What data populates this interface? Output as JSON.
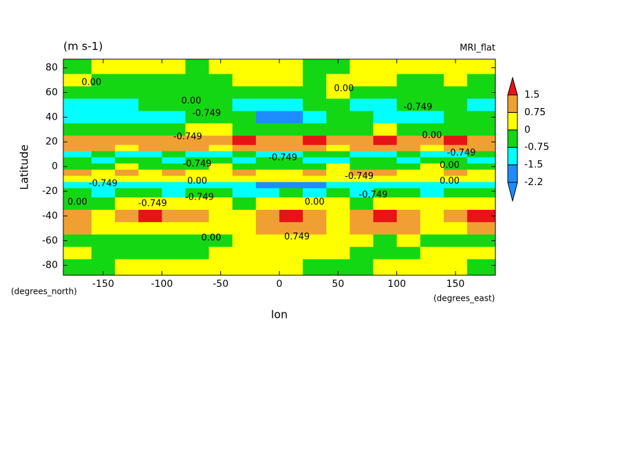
{
  "chart_data": {
    "type": "contourf",
    "title": "MRI_flat",
    "subtitle": "(m s-1)",
    "x_label": "lon",
    "y_label": "Latitude",
    "x_units": "(degrees_east)",
    "y_units": "(degrees_north)",
    "xlim": [
      -184,
      184
    ],
    "ylim": [
      -88,
      87
    ],
    "xticks": [
      -150,
      -100,
      -50,
      0,
      50,
      100,
      150
    ],
    "yticks": [
      -80,
      -60,
      -40,
      -20,
      0,
      20,
      40,
      60,
      80
    ],
    "levels": [
      -2.2,
      -1.5,
      -0.75,
      0,
      0.75,
      1.5
    ],
    "level_colors": [
      "#1e8cff",
      "#1e8cff",
      "#00ffff",
      "#14d714",
      "#ffff00",
      "#f0a032",
      "#e61414"
    ],
    "x": [
      -170,
      -150,
      -130,
      -110,
      -90,
      -70,
      -50,
      -30,
      -10,
      10,
      30,
      50,
      70,
      90,
      110,
      130,
      150,
      170
    ],
    "y": [
      80,
      70,
      60,
      50,
      40,
      30,
      20,
      15,
      10,
      5,
      0,
      -5,
      -10,
      -15,
      -20,
      -30,
      -40,
      -50,
      -60,
      -70,
      -80
    ],
    "z": [
      [
        -0.3,
        0.3,
        0.3,
        0.3,
        0.3,
        -0.3,
        0.3,
        0.3,
        0.3,
        0.3,
        -0.3,
        -0.3,
        0.3,
        0.3,
        0.3,
        0.3,
        0.3,
        0.3
      ],
      [
        0.3,
        -0.3,
        -0.3,
        -0.3,
        -0.3,
        -0.3,
        -0.3,
        0.3,
        0.3,
        0.3,
        -0.3,
        0.3,
        0.3,
        0.3,
        -0.3,
        -0.3,
        0.3,
        -0.3
      ],
      [
        -0.3,
        -0.3,
        -0.3,
        -0.3,
        -0.3,
        -0.3,
        -0.3,
        -0.3,
        -0.3,
        -0.3,
        -0.3,
        0.3,
        -0.3,
        -0.3,
        -0.3,
        -0.3,
        -0.3,
        -0.3
      ],
      [
        -0.9,
        -0.9,
        -0.9,
        -0.3,
        -0.3,
        -0.3,
        -0.3,
        -0.9,
        -1.2,
        -1.2,
        -0.3,
        -0.3,
        -0.9,
        -0.9,
        -0.3,
        -0.3,
        -0.3,
        -0.9
      ],
      [
        -0.9,
        -1.0,
        -1.0,
        -0.9,
        -0.9,
        -0.3,
        -0.3,
        -0.3,
        -1.6,
        -1.6,
        -0.9,
        -0.3,
        -0.3,
        -0.9,
        -1.0,
        -0.9,
        -0.3,
        -0.3
      ],
      [
        -0.3,
        -0.3,
        -0.3,
        -0.3,
        -0.3,
        0.3,
        0.3,
        -0.3,
        -0.3,
        -0.3,
        -0.3,
        -0.3,
        -0.3,
        0.3,
        -0.3,
        -0.3,
        -0.3,
        -0.3
      ],
      [
        0.9,
        0.9,
        0.9,
        0.9,
        0.9,
        0.9,
        0.9,
        1.6,
        1.1,
        0.9,
        1.6,
        0.9,
        0.9,
        1.6,
        1.1,
        0.9,
        1.6,
        0.9
      ],
      [
        0.9,
        0.9,
        0.3,
        0.9,
        0.9,
        0.9,
        0.3,
        0.9,
        0.9,
        0.9,
        0.9,
        0.3,
        0.9,
        0.9,
        0.9,
        0.3,
        0.9,
        0.9
      ],
      [
        -0.9,
        -0.3,
        -0.9,
        -0.9,
        -0.3,
        -0.9,
        -0.9,
        -0.3,
        -0.9,
        -0.9,
        -0.3,
        -0.3,
        -0.9,
        -0.9,
        -0.3,
        -0.9,
        -0.9,
        -0.3
      ],
      [
        -0.3,
        -0.9,
        -0.3,
        -0.3,
        -0.9,
        -0.3,
        -0.3,
        -0.9,
        -0.3,
        -0.3,
        -0.9,
        -0.9,
        -0.3,
        -0.3,
        -0.9,
        -0.3,
        -0.3,
        -0.9
      ],
      [
        -0.3,
        -0.3,
        0.3,
        -0.3,
        -0.3,
        -0.3,
        0.3,
        -0.3,
        -0.3,
        -0.3,
        -0.3,
        0.3,
        -0.3,
        -0.3,
        -0.3,
        0.3,
        -0.3,
        -0.3
      ],
      [
        0.9,
        0.3,
        0.9,
        0.3,
        0.9,
        0.3,
        0.3,
        0.9,
        0.3,
        0.3,
        0.9,
        0.3,
        0.9,
        0.9,
        0.3,
        0.3,
        0.9,
        0.3
      ],
      [
        0.3,
        0.3,
        0.3,
        0.3,
        0.3,
        0.3,
        0.3,
        0.3,
        0.3,
        0.3,
        0.3,
        0.3,
        0.3,
        0.3,
        0.3,
        0.3,
        0.3,
        0.3
      ],
      [
        -0.9,
        -0.9,
        -0.9,
        -0.9,
        -0.9,
        -0.9,
        -0.9,
        -0.9,
        -1.6,
        -1.6,
        -1.6,
        -0.9,
        -0.9,
        -0.9,
        -0.9,
        -0.9,
        -0.9,
        -0.9
      ],
      [
        -0.3,
        -0.9,
        -0.3,
        -0.3,
        -0.9,
        -0.3,
        -0.3,
        -0.9,
        -0.9,
        -0.3,
        -0.9,
        -0.3,
        -0.9,
        -0.3,
        -0.3,
        -0.9,
        -0.3,
        -0.3
      ],
      [
        -0.3,
        -0.3,
        0.3,
        0.3,
        0.3,
        0.3,
        0.3,
        -0.3,
        0.3,
        0.3,
        0.3,
        0.3,
        -0.3,
        0.3,
        0.3,
        0.3,
        0.3,
        0.3
      ],
      [
        1.1,
        0.3,
        0.9,
        1.6,
        0.9,
        0.9,
        0.3,
        0.3,
        0.9,
        1.6,
        0.9,
        0.3,
        0.9,
        1.6,
        1.1,
        0.3,
        0.9,
        1.6
      ],
      [
        0.9,
        0.3,
        0.3,
        0.3,
        0.3,
        0.3,
        0.3,
        0.3,
        0.9,
        0.9,
        0.9,
        0.3,
        0.9,
        0.9,
        0.9,
        0.3,
        0.3,
        0.9
      ],
      [
        -0.3,
        -0.3,
        -0.3,
        -0.3,
        -0.3,
        -0.3,
        -0.3,
        0.3,
        0.3,
        0.3,
        0.3,
        0.3,
        0.3,
        -0.3,
        0.3,
        -0.3,
        -0.3,
        -0.3
      ],
      [
        0.3,
        -0.3,
        -0.3,
        -0.3,
        -0.3,
        -0.3,
        0.3,
        0.3,
        0.3,
        0.3,
        0.3,
        0.3,
        -0.3,
        -0.3,
        -0.3,
        0.3,
        0.3,
        0.3
      ],
      [
        -0.3,
        -0.3,
        0.3,
        0.3,
        0.3,
        0.3,
        0.3,
        0.3,
        0.3,
        0.3,
        -0.3,
        -0.3,
        -0.3,
        0.3,
        0.3,
        0.3,
        0.3,
        -0.3
      ]
    ],
    "annotations": [
      {
        "text": "0.00",
        "x": -160,
        "y": 68
      },
      {
        "text": "0.00",
        "x": -75,
        "y": 53
      },
      {
        "text": "-0.749",
        "x": -62,
        "y": 43
      },
      {
        "text": "0.00",
        "x": 55,
        "y": 63
      },
      {
        "text": "-0.749",
        "x": 118,
        "y": 48
      },
      {
        "text": "-0.749",
        "x": -78,
        "y": 24
      },
      {
        "text": "-0.749",
        "x": 3,
        "y": 7
      },
      {
        "text": "-0.749",
        "x": -70,
        "y": 2
      },
      {
        "text": "0.00",
        "x": -70,
        "y": -12
      },
      {
        "text": "-0.749",
        "x": -150,
        "y": -14
      },
      {
        "text": "-0.749",
        "x": -108,
        "y": -30
      },
      {
        "text": "-0.749",
        "x": -68,
        "y": -25
      },
      {
        "text": "0.00",
        "x": -172,
        "y": -29
      },
      {
        "text": "0.00",
        "x": -58,
        "y": -58
      },
      {
        "text": "0.749",
        "x": 15,
        "y": -57
      },
      {
        "text": "0.00",
        "x": 30,
        "y": -29
      },
      {
        "text": "-0.749",
        "x": 80,
        "y": -23
      },
      {
        "text": "-0.749",
        "x": 68,
        "y": -8
      },
      {
        "text": "0.00",
        "x": 145,
        "y": 1
      },
      {
        "text": "0.00",
        "x": 145,
        "y": -12
      },
      {
        "text": "-0.749",
        "x": 155,
        "y": 11
      },
      {
        "text": "0.00",
        "x": 130,
        "y": 25
      }
    ]
  }
}
